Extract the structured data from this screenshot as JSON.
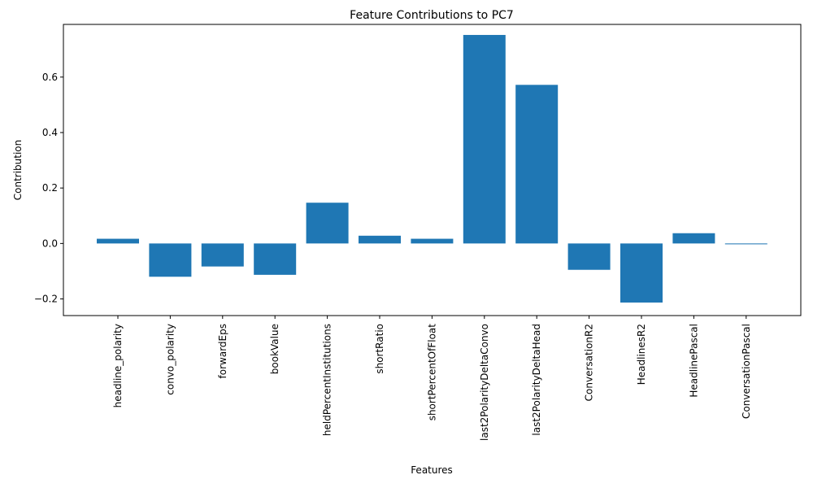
{
  "chart_data": {
    "type": "bar",
    "title": "Feature Contributions to PC7",
    "xlabel": "Features",
    "ylabel": "Contribution",
    "categories": [
      "headline_polarity",
      "convo_polarity",
      "forwardEps",
      "bookValue",
      "heldPercentInstitutions",
      "shortRatio",
      "shortPercentOfFloat",
      "last2PolarityDeltaConvo",
      "last2PolarityDeltaHead",
      "ConversationR2",
      "HeadlinesR2",
      "HeadlinePascal",
      "ConversationPascal"
    ],
    "values": [
      0.017,
      -0.12,
      -0.083,
      -0.113,
      0.147,
      0.028,
      0.017,
      0.752,
      0.572,
      -0.095,
      -0.213,
      0.037,
      -0.003
    ],
    "ylim": [
      -0.26,
      0.79
    ],
    "yticks": [
      -0.2,
      0.0,
      0.2,
      0.4,
      0.6
    ],
    "ytick_labels": [
      "−0.2",
      "0.0",
      "0.2",
      "0.4",
      "0.6"
    ],
    "bar_color": "#1f77b4",
    "grid": false,
    "legend": "none"
  }
}
